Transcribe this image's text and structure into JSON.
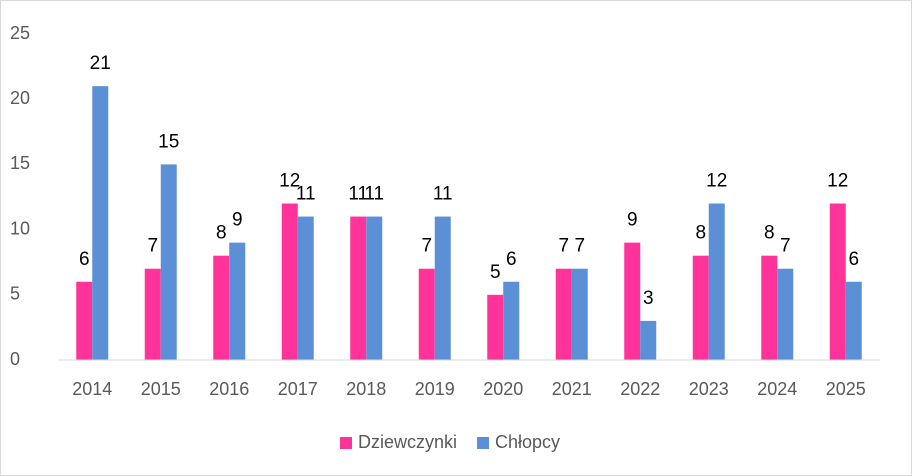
{
  "chart_data": {
    "type": "bar",
    "categories": [
      "2014",
      "2015",
      "2016",
      "2017",
      "2018",
      "2019",
      "2020",
      "2021",
      "2022",
      "2023",
      "2024",
      "2025"
    ],
    "series": [
      {
        "name": "Dziewczynki",
        "color": "#ff3399",
        "values": [
          6,
          7,
          8,
          12,
          11,
          7,
          5,
          7,
          9,
          8,
          8,
          12
        ]
      },
      {
        "name": "Chłopcy",
        "color": "#5b8fd6",
        "values": [
          21,
          15,
          9,
          11,
          11,
          11,
          6,
          7,
          3,
          12,
          7,
          6
        ]
      }
    ],
    "ylim": [
      0,
      25
    ],
    "yticks": [
      0,
      5,
      10,
      15,
      20,
      25
    ],
    "grid": false,
    "legend": "bottom"
  }
}
